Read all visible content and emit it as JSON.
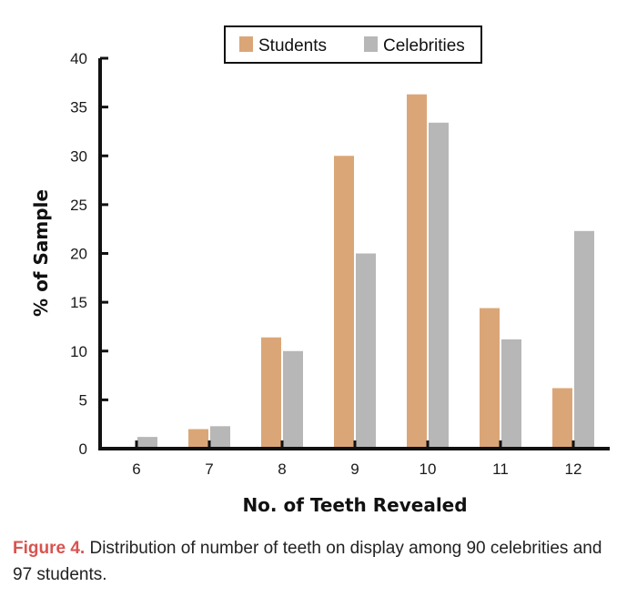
{
  "chart_data": {
    "type": "bar",
    "categories": [
      "6",
      "7",
      "8",
      "9",
      "10",
      "11",
      "12"
    ],
    "series": [
      {
        "name": "Students",
        "color": "#dba677",
        "values": [
          0,
          2,
          11.4,
          30,
          36.3,
          14.4,
          6.2
        ]
      },
      {
        "name": "Celebrities",
        "color": "#b7b7b7",
        "values": [
          1.2,
          2.3,
          10,
          20,
          33.4,
          11.2,
          22.3
        ]
      }
    ],
    "xlabel": "No. of Teeth Revealed",
    "ylabel": "% of Sample",
    "ylim": [
      0,
      40
    ],
    "yticks": [
      0,
      5,
      10,
      15,
      20,
      25,
      30,
      35,
      40
    ],
    "legend_position": "top-center",
    "grid": false
  },
  "caption": {
    "label": "Figure 4.",
    "text": " Distribution of number of teeth on display among 90 celebrities and 97 students."
  }
}
